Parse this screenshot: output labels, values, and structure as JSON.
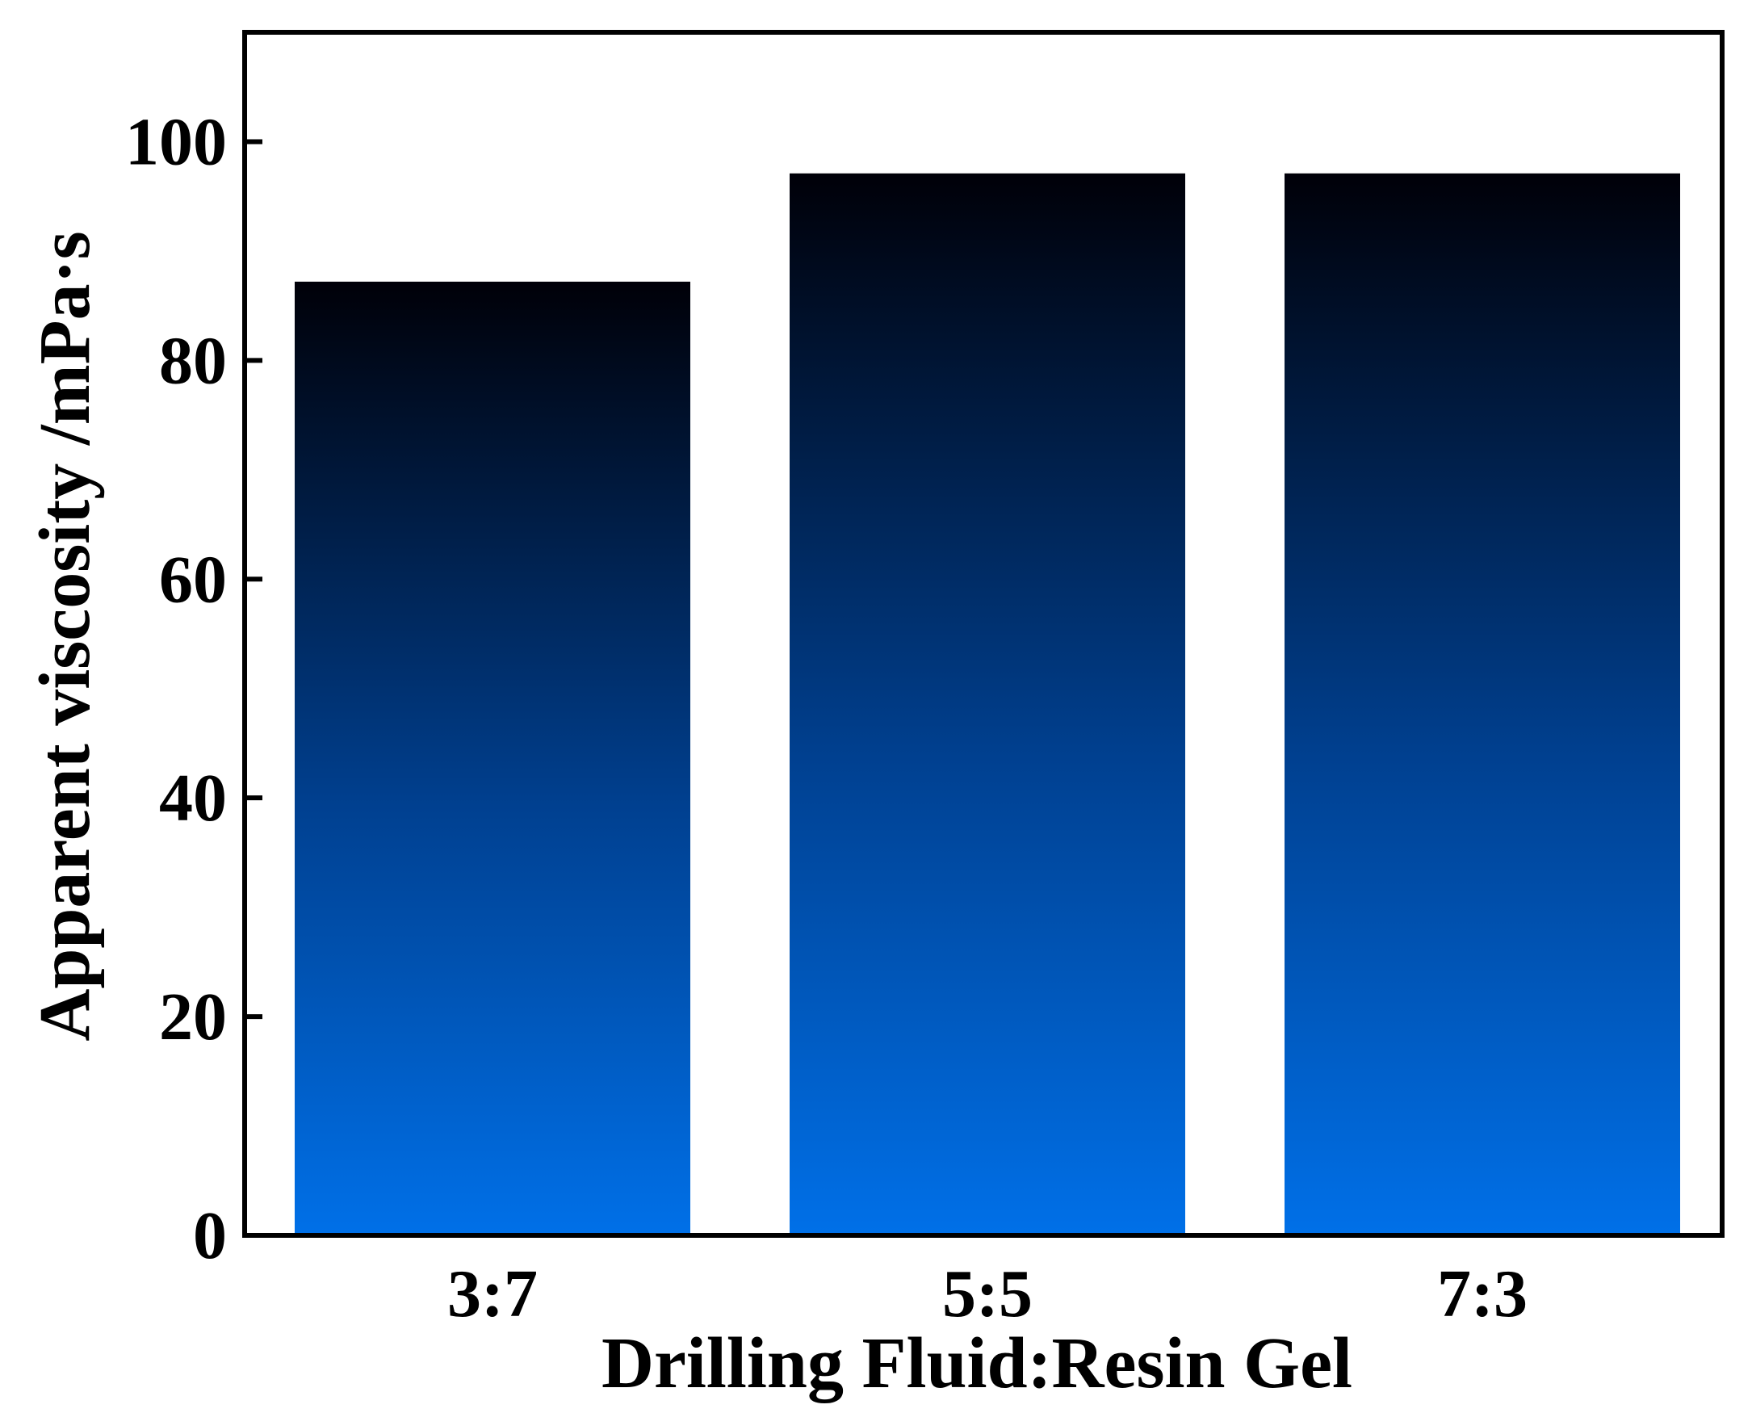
{
  "chart_data": {
    "type": "bar",
    "title": "",
    "xlabel": "Drilling Fluid:Resin Gel",
    "ylabel": "Apparent viscosity /mPa·s",
    "categories": [
      "3:7",
      "5:5",
      "7:3"
    ],
    "values": [
      87.2,
      97.1,
      97.1
    ],
    "ylim": [
      0,
      110
    ],
    "yticks": [
      0,
      20,
      40,
      60,
      80,
      100
    ],
    "grid": false,
    "legend": "none",
    "bar_gradient": {
      "top": "#000008",
      "middle": "#004090",
      "bottom": "#0070e8"
    }
  }
}
